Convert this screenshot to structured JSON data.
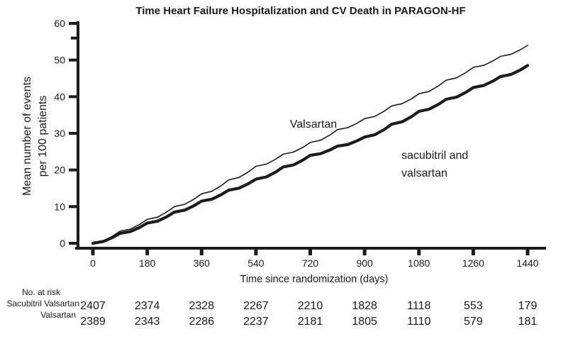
{
  "chart_data": {
    "type": "line",
    "title": "Time Heart Failure Hospitalization and CV Death in PARAGON-HF",
    "xlabel": "Time since randomization (days)",
    "ylabel_lines": [
      "Mean number of events",
      "per 100 patients"
    ],
    "xlim": [
      0,
      1440
    ],
    "ylim": [
      0,
      60
    ],
    "x_ticks": [
      0,
      180,
      360,
      540,
      720,
      900,
      1080,
      1260,
      1440
    ],
    "y_ticks": [
      0,
      10,
      20,
      30,
      40,
      50,
      60
    ],
    "y_minor_tick": 56,
    "grid": false,
    "legend_position": "inline-annotations",
    "x": [
      0,
      90,
      180,
      270,
      360,
      450,
      540,
      630,
      720,
      810,
      900,
      990,
      1080,
      1170,
      1260,
      1350,
      1440
    ],
    "series": [
      {
        "name": "Valsartan",
        "label": "Valsartan",
        "line_style": "thin",
        "color": "#1b1b1b",
        "values": [
          0,
          3.3,
          6.5,
          10,
          13.5,
          17.3,
          21,
          24.3,
          27.5,
          31,
          34,
          37.5,
          40.8,
          44.5,
          48,
          51,
          54
        ]
      },
      {
        "name": "sacubitril and valsartan",
        "label_lines": [
          "sacubitril and",
          "valsartan"
        ],
        "line_style": "thick",
        "color": "#1b1b1b",
        "values": [
          0,
          2.7,
          5.5,
          8.5,
          11.5,
          14.5,
          17.5,
          20.8,
          24,
          26.5,
          29,
          32.5,
          36,
          39.3,
          42.5,
          45.5,
          48.5
        ]
      }
    ],
    "risk_table": {
      "header": "No. at risk",
      "rows": [
        {
          "label": "Sacubitril Valsartan",
          "values": [
            "2407",
            "2374",
            "2328",
            "2267",
            "2210",
            "1828",
            "1118",
            "553",
            "179"
          ]
        },
        {
          "label": "Valsartan",
          "values": [
            "2389",
            "2343",
            "2286",
            "2237",
            "2181",
            "1805",
            "1110",
            "579",
            "181"
          ]
        }
      ]
    },
    "colors": {
      "line": "#1b1b1b",
      "text": "#1b1b1b",
      "background": "#ffffff"
    }
  }
}
